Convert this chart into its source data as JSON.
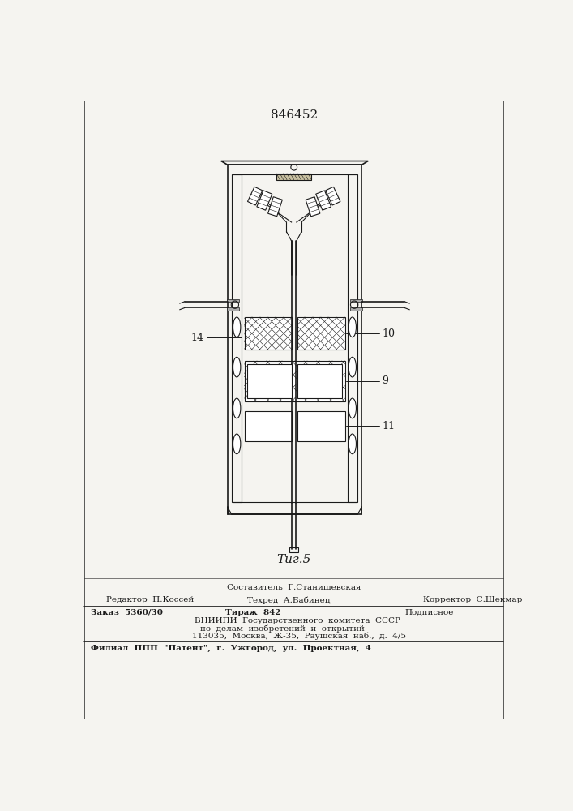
{
  "title": "846452",
  "fig_label": "Τиг.5",
  "background_color": "#f5f4f0",
  "line_color": "#1a1a1a",
  "label_14": "14",
  "label_10": "10",
  "label_9": "9",
  "label_11": "11",
  "footer_line1": "Составитель  Г.Станишевская",
  "footer_line2_left": "Редактор  П.Коссей",
  "footer_line2_mid": "Техред  А.Бабинец",
  "footer_line2_right": "Корректор  С.Шекмар",
  "footer_line3_left": "Заказ  5360/30",
  "footer_line3_mid": "Тираж  842",
  "footer_line3_right": "Подписное",
  "footer_line4": "ВНИИПИ  Государственного  комитета  СССР",
  "footer_line5": "по  делам  изобретений  и  открытий",
  "footer_line6": "113035,  Москва,  Ж-35,  Раушская  наб.,  д.  4/5",
  "footer_line7": "Филиал  ППП  \"Патент\",  г.  Ужгород,  ул.  Проектная,  4"
}
